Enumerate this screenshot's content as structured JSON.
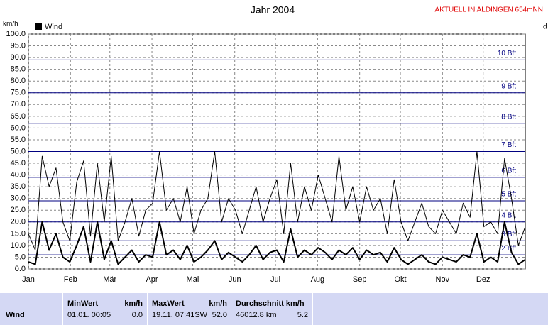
{
  "chart_data": {
    "type": "line",
    "title": "Jahr 2004",
    "note": "AKTUELL IN ALDINGEN 654mNN",
    "y_label": "km/h",
    "y2_label": "d",
    "xlim": [
      0,
      366
    ],
    "xticks": [
      {
        "value": 0,
        "label": "Jan"
      },
      {
        "value": 31,
        "label": "Feb"
      },
      {
        "value": 60,
        "label": "Mär"
      },
      {
        "value": 91,
        "label": "Apr"
      },
      {
        "value": 121,
        "label": "Mai"
      },
      {
        "value": 152,
        "label": "Jun"
      },
      {
        "value": 182,
        "label": "Jul"
      },
      {
        "value": 213,
        "label": "Aug"
      },
      {
        "value": 244,
        "label": "Sep"
      },
      {
        "value": 274,
        "label": "Okt"
      },
      {
        "value": 305,
        "label": "Nov"
      },
      {
        "value": 335,
        "label": "Dez"
      }
    ],
    "ylim": [
      0,
      100
    ],
    "yticks": [
      {
        "value": 0,
        "label": "0.0"
      },
      {
        "value": 5,
        "label": "5.0"
      },
      {
        "value": 10,
        "label": "10.0"
      },
      {
        "value": 15,
        "label": "15.0"
      },
      {
        "value": 20,
        "label": "20.0"
      },
      {
        "value": 25,
        "label": "25.0"
      },
      {
        "value": 30,
        "label": "30.0"
      },
      {
        "value": 35,
        "label": "35.0"
      },
      {
        "value": 40,
        "label": "40.0"
      },
      {
        "value": 45,
        "label": "45.0"
      },
      {
        "value": 50,
        "label": "50.0"
      },
      {
        "value": 55,
        "label": "55.0"
      },
      {
        "value": 60,
        "label": "60.0"
      },
      {
        "value": 65,
        "label": "65.0"
      },
      {
        "value": 70,
        "label": "70.0"
      },
      {
        "value": 75,
        "label": "75.0"
      },
      {
        "value": 80,
        "label": "80.0"
      },
      {
        "value": 85,
        "label": "85.0"
      },
      {
        "value": 90,
        "label": "90.0"
      },
      {
        "value": 95,
        "label": "95.0"
      },
      {
        "value": 100,
        "label": "100.0"
      }
    ],
    "grid": true,
    "reference_color": "#000080",
    "reference_lines": [
      {
        "value": 6,
        "label": "2 Bft"
      },
      {
        "value": 12,
        "label": "3 Bft"
      },
      {
        "value": 20,
        "label": "4 Bft"
      },
      {
        "value": 29,
        "label": "5 Bft"
      },
      {
        "value": 39,
        "label": "6 Bft"
      },
      {
        "value": 50,
        "label": "7 Bft"
      },
      {
        "value": 62,
        "label": "8 Bft"
      },
      {
        "value": 75,
        "label": "9 Bft"
      },
      {
        "value": 89,
        "label": "10 Bft"
      }
    ],
    "series": [
      {
        "color": "#000000",
        "width": 1,
        "values": [
          15,
          8,
          48,
          35,
          43,
          20,
          12,
          37,
          46,
          14,
          45,
          20,
          48,
          12,
          20,
          30,
          14,
          25,
          28,
          50,
          25,
          30,
          20,
          35,
          15,
          25,
          30,
          50,
          20,
          30,
          25,
          15,
          25,
          35,
          20,
          30,
          38,
          15,
          45,
          20,
          35,
          25,
          40,
          30,
          20,
          48,
          25,
          35,
          20,
          35,
          25,
          30,
          15,
          38,
          20,
          12,
          20,
          28,
          18,
          15,
          25,
          20,
          15,
          28,
          22,
          50,
          18,
          20,
          15,
          47,
          30,
          10,
          18
        ]
      },
      {
        "name": "Wind",
        "color": "#000000",
        "width": 2,
        "values": [
          3,
          2,
          20,
          8,
          15,
          5,
          3,
          10,
          18,
          3,
          20,
          4,
          12,
          2,
          5,
          8,
          3,
          6,
          5,
          20,
          6,
          8,
          4,
          10,
          3,
          5,
          8,
          12,
          4,
          7,
          5,
          3,
          6,
          10,
          4,
          7,
          8,
          3,
          17,
          5,
          8,
          6,
          9,
          7,
          4,
          8,
          6,
          9,
          4,
          8,
          6,
          7,
          3,
          9,
          4,
          2,
          4,
          6,
          3,
          2,
          5,
          4,
          3,
          6,
          5,
          15,
          3,
          5,
          3,
          20,
          7,
          2,
          4
        ]
      }
    ]
  },
  "stats_table": {
    "row_label": "Wind",
    "columns": [
      {
        "header": "MinWert",
        "unit": "km/h",
        "date": "01.01.  00:05",
        "value": "0.0"
      },
      {
        "header": "MaxWert",
        "unit": "km/h",
        "date": "19.11.  07:41SW",
        "value": "52.0"
      },
      {
        "header": "Durchschnitt km/h",
        "unit": "",
        "date": "46012.8 km",
        "value": "5.2"
      }
    ]
  }
}
